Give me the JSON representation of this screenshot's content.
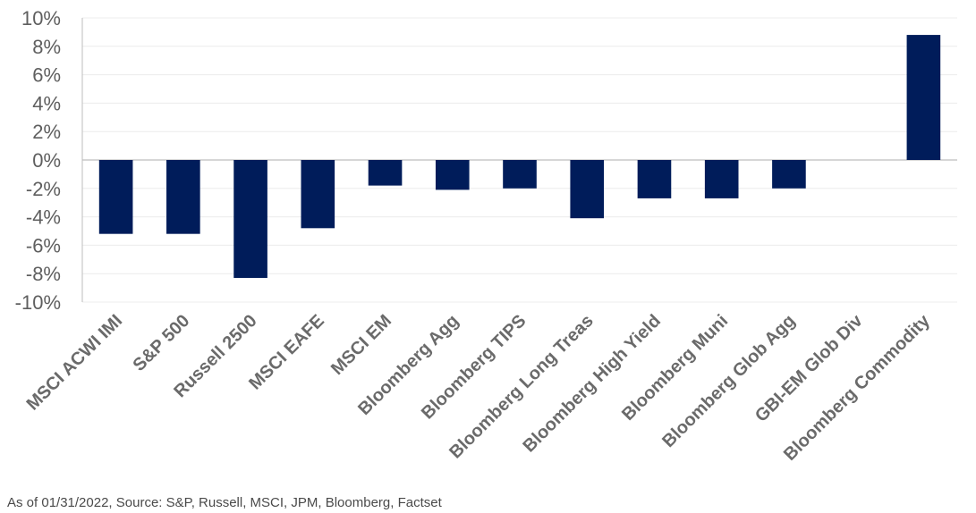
{
  "chart_data": {
    "type": "bar",
    "title": "",
    "xlabel": "",
    "ylabel": "",
    "categories": [
      "MSCI ACWI IMI",
      "S&P 500",
      "Russell 2500",
      "MSCI EAFE",
      "MSCI EM",
      "Bloomberg Agg",
      "Bloomberg TIPS",
      "Bloomberg Long Treas",
      "Bloomberg High Yield",
      "Bloomberg Muni",
      "Bloomberg Glob Agg",
      "GBI-EM Glob Div",
      "Bloomberg Commodity"
    ],
    "values": [
      -5.2,
      -5.2,
      -8.3,
      -4.8,
      -1.8,
      -2.1,
      -2.0,
      -4.1,
      -2.7,
      -2.7,
      -2.0,
      0,
      8.8
    ],
    "ylim": [
      -10,
      10
    ],
    "yticks": [
      10,
      8,
      6,
      4,
      2,
      0,
      -2,
      -4,
      -6,
      -8,
      -10
    ],
    "ytick_labels": [
      "10%",
      "8%",
      "6%",
      "4%",
      "2%",
      "0%",
      "-2%",
      "-4%",
      "-6%",
      "-8%",
      "-10%"
    ],
    "grid": true,
    "bar_color": "#001c5a",
    "grid_color": "#ececec",
    "axis_color": "#bdbdbd"
  },
  "footnote": "As of 01/31/2022, Source: S&P, Russell, MSCI, JPM, Bloomberg, Factset"
}
